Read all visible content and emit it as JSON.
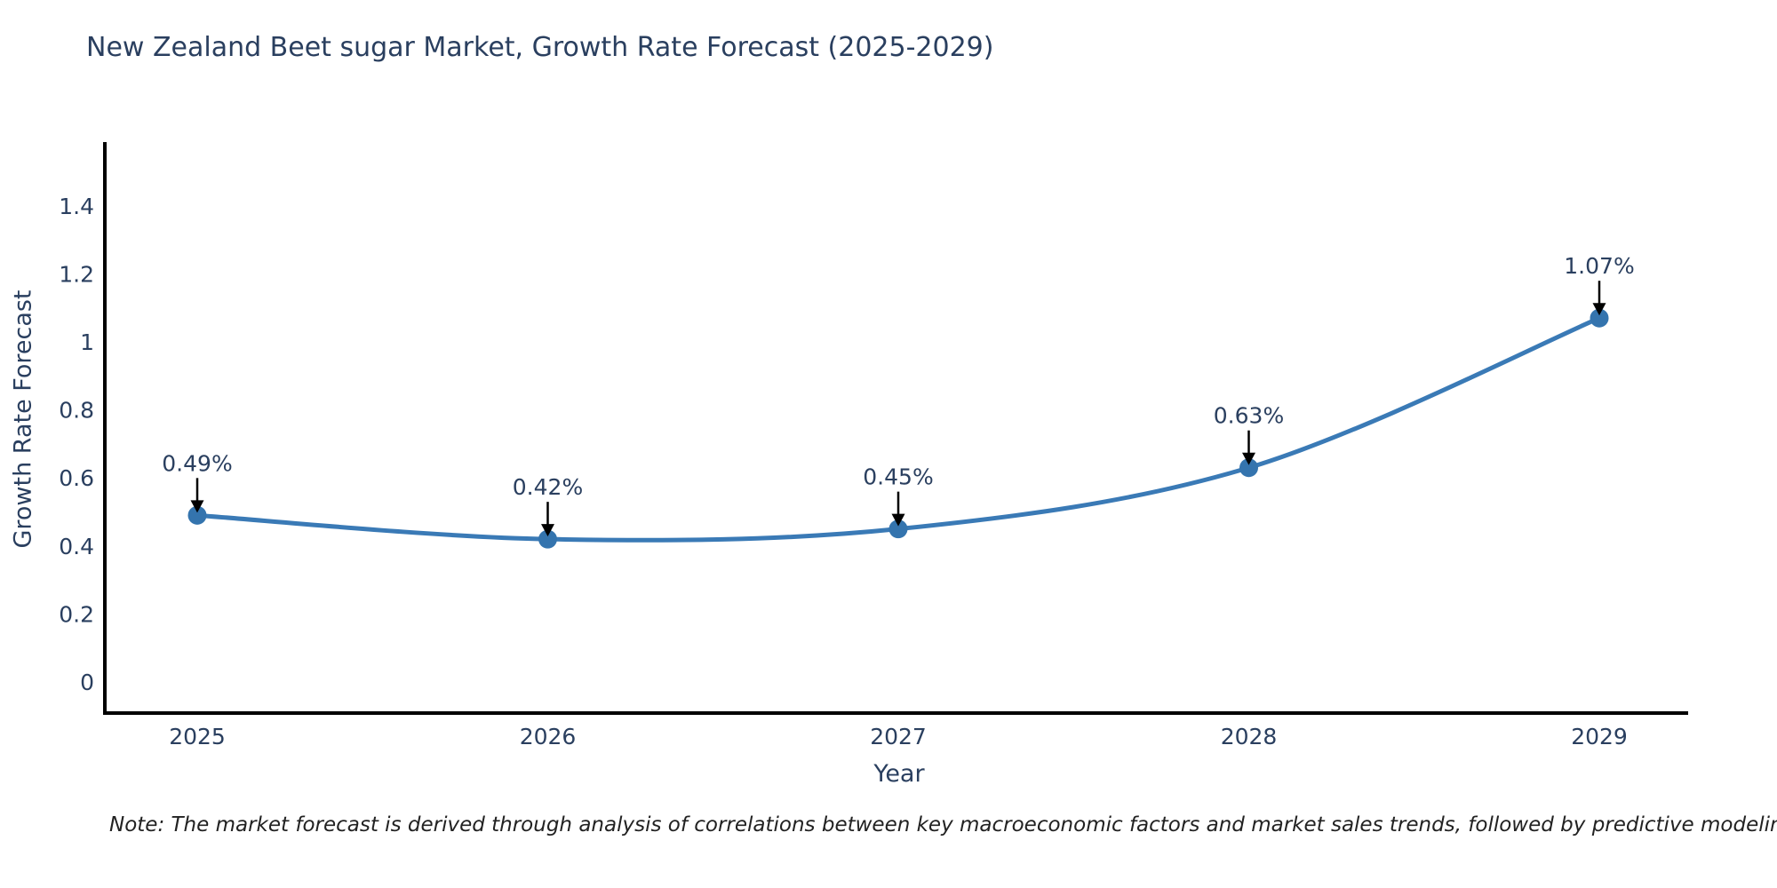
{
  "page": {
    "background": "#ffffff"
  },
  "note": "Note: The market forecast is derived through analysis of correlations between key macroeconomic factors and market sales trends, followed by predictive modeling to project future sales",
  "chart_data": {
    "type": "line",
    "curve": "spline",
    "title": "New Zealand Beet sugar Market, Growth Rate Forecast (2025-2029)",
    "xlabel": "Year",
    "ylabel": "Growth Rate Forecast",
    "categories": [
      "2025",
      "2026",
      "2027",
      "2028",
      "2029"
    ],
    "series": [
      {
        "name": "Growth Rate Forecast",
        "values": [
          0.49,
          0.42,
          0.45,
          0.63,
          1.07
        ],
        "point_labels": [
          "0.49%",
          "0.42%",
          "0.45%",
          "0.63%",
          "1.07%"
        ]
      }
    ],
    "ytick_labels": [
      "0",
      "0.2",
      "0.4",
      "0.6",
      "0.8",
      "1",
      "1.2",
      "1.4"
    ],
    "ytick_values": [
      0,
      0.2,
      0.4,
      0.6,
      0.8,
      1,
      1.2,
      1.4
    ],
    "ylim": [
      0,
      1.55
    ],
    "grid": false,
    "legend": false,
    "annotations": "arrows-down-to-points",
    "colors": {
      "line": "#3a7ab6",
      "marker": "#3474ae",
      "axis": "#000000",
      "text": "#2a3f5f",
      "annotation_arrow": "#000000",
      "annotation_text": "#2a3f5f",
      "note_text": "#222222"
    }
  }
}
